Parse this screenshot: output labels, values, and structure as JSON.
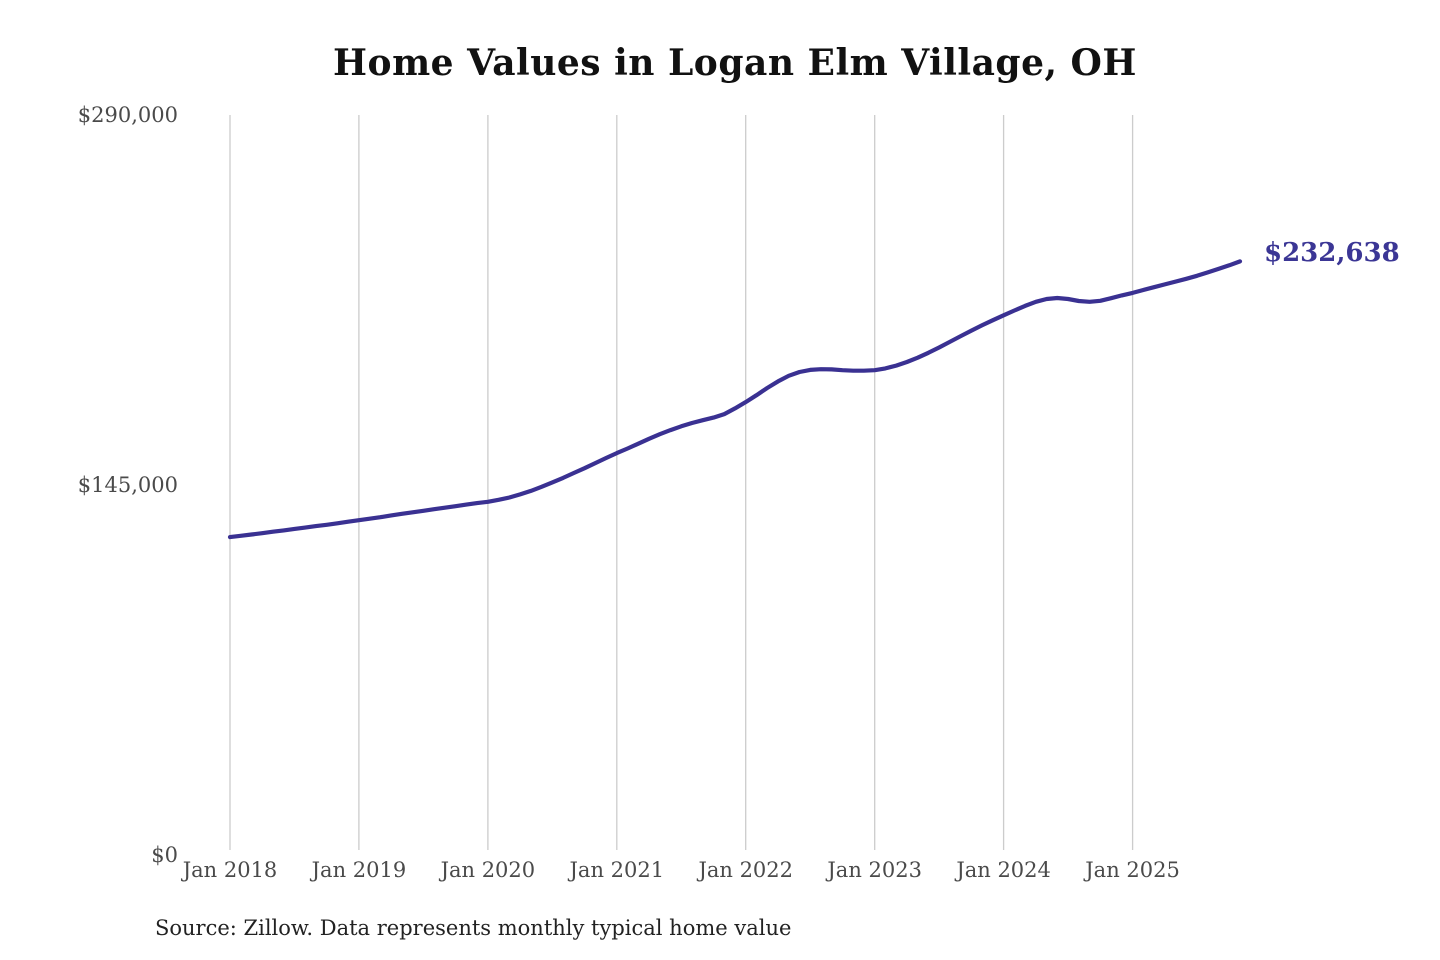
{
  "page": {
    "title": "Home Values in Logan Elm Village, OH",
    "source_note": "Source: Zillow. Data represents monthly typical home value"
  },
  "colors": {
    "line": "#3a3192",
    "value_label": "#3b3695",
    "grid": "#cccccc",
    "tick_text": "#4a4a4a",
    "title_text": "#111111",
    "source_text": "#222222",
    "background": "#ffffff"
  },
  "chart_data": {
    "type": "line",
    "title": "Home Values in Logan Elm Village, OH",
    "series_name": "Monthly typical home value",
    "unit": "USD",
    "ylim": [
      0,
      290000
    ],
    "grid": "vertical-only",
    "legend": "none",
    "last_value_label": "$232,638",
    "y_ticks": [
      {
        "value": 290000,
        "label": "$290,000"
      },
      {
        "value": 145000,
        "label": "$145,000"
      },
      {
        "value": 0,
        "label": "$0"
      }
    ],
    "x_ticks": [
      {
        "index": 0,
        "label": "Jan 2018"
      },
      {
        "index": 12,
        "label": "Jan 2019"
      },
      {
        "index": 24,
        "label": "Jan 2020"
      },
      {
        "index": 36,
        "label": "Jan 2021"
      },
      {
        "index": 48,
        "label": "Jan 2022"
      },
      {
        "index": 60,
        "label": "Jan 2023"
      },
      {
        "index": 72,
        "label": "Jan 2024"
      },
      {
        "index": 84,
        "label": "Jan 2025"
      }
    ],
    "x": [
      "2018-01",
      "2018-02",
      "2018-03",
      "2018-04",
      "2018-05",
      "2018-06",
      "2018-07",
      "2018-08",
      "2018-09",
      "2018-10",
      "2018-11",
      "2018-12",
      "2019-01",
      "2019-02",
      "2019-03",
      "2019-04",
      "2019-05",
      "2019-06",
      "2019-07",
      "2019-08",
      "2019-09",
      "2019-10",
      "2019-11",
      "2019-12",
      "2020-01",
      "2020-02",
      "2020-03",
      "2020-04",
      "2020-05",
      "2020-06",
      "2020-07",
      "2020-08",
      "2020-09",
      "2020-10",
      "2020-11",
      "2020-12",
      "2021-01",
      "2021-02",
      "2021-03",
      "2021-04",
      "2021-05",
      "2021-06",
      "2021-07",
      "2021-08",
      "2021-09",
      "2021-10",
      "2021-11",
      "2021-12",
      "2022-01",
      "2022-02",
      "2022-03",
      "2022-04",
      "2022-05",
      "2022-06",
      "2022-07",
      "2022-08",
      "2022-09",
      "2022-10",
      "2022-11",
      "2022-12",
      "2023-01",
      "2023-02",
      "2023-03",
      "2023-04",
      "2023-05",
      "2023-06",
      "2023-07",
      "2023-08",
      "2023-09",
      "2023-10",
      "2023-11",
      "2023-12",
      "2024-01",
      "2024-02",
      "2024-03",
      "2024-04",
      "2024-05",
      "2024-06",
      "2024-07",
      "2024-08",
      "2024-09",
      "2024-10",
      "2024-11",
      "2024-12",
      "2025-01",
      "2025-02",
      "2025-03",
      "2025-04",
      "2025-05",
      "2025-06",
      "2025-07",
      "2025-08",
      "2025-09",
      "2025-10",
      "2025-11"
    ],
    "values": [
      124600,
      125100,
      125600,
      126100,
      126700,
      127200,
      127800,
      128300,
      128900,
      129400,
      130000,
      130600,
      131200,
      131800,
      132400,
      133100,
      133700,
      134300,
      134900,
      135500,
      136100,
      136700,
      137300,
      137900,
      138400,
      139200,
      140100,
      141300,
      142700,
      144300,
      146000,
      147800,
      149700,
      151600,
      153600,
      155600,
      157500,
      159300,
      161200,
      163100,
      164900,
      166500,
      168000,
      169300,
      170400,
      171400,
      172800,
      175000,
      177500,
      180200,
      183000,
      185600,
      187800,
      189300,
      190100,
      190400,
      190300,
      190000,
      189800,
      189800,
      190000,
      190700,
      191800,
      193200,
      194900,
      196800,
      198900,
      201100,
      203300,
      205500,
      207600,
      209600,
      211500,
      213400,
      215200,
      216800,
      217900,
      218300,
      217900,
      217100,
      216800,
      217200,
      218200,
      219300,
      220300,
      221400,
      222500,
      223600,
      224700,
      225800,
      227000,
      228300,
      229700,
      231100,
      232638
    ]
  }
}
